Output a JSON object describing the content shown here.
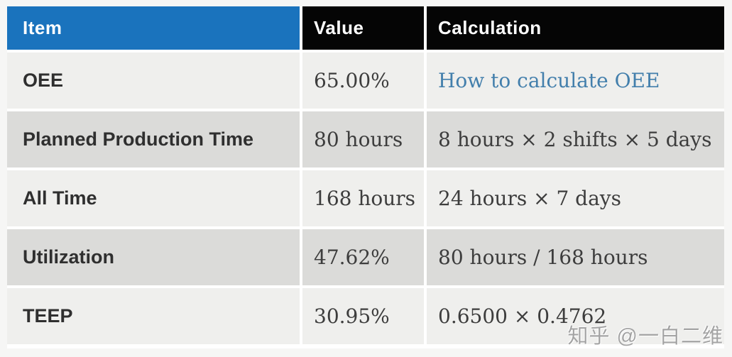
{
  "chart_data": {
    "type": "table",
    "title": "OEE / TEEP calculation table",
    "columns": [
      "Item",
      "Value",
      "Calculation"
    ],
    "rows": [
      [
        "OEE",
        "65.00%",
        "How to calculate OEE"
      ],
      [
        "Planned Production Time",
        "80 hours",
        "8 hours × 2 shifts × 5 days"
      ],
      [
        "All Time",
        "168 hours",
        "24 hours × 7 days"
      ],
      [
        "Utilization",
        "47.62%",
        "80 hours / 168 hours"
      ],
      [
        "TEEP",
        "30.95%",
        "0.6500 × 0.4762"
      ]
    ]
  },
  "table": {
    "header": {
      "item": "Item",
      "value": "Value",
      "calculation": "Calculation"
    },
    "rows": [
      {
        "item": "OEE",
        "value": "65.00%",
        "calculation": "How to calculate OEE"
      },
      {
        "item": "Planned Production Time",
        "value": "80 hours",
        "calculation": "8 hours × 2 shifts × 5 days"
      },
      {
        "item": "All Time",
        "value": "168 hours",
        "calculation": "24 hours × 7 days"
      },
      {
        "item": "Utilization",
        "value": "47.62%",
        "calculation": "80 hours / 168 hours"
      },
      {
        "item": "TEEP",
        "value": "30.95%",
        "calculation": "0.6500 × 0.4762"
      }
    ]
  },
  "watermark": {
    "text": "知乎 @一白二维"
  },
  "colors": {
    "header_item_bg": "#1a73bd",
    "header_dark_bg": "#050505",
    "row_light_bg": "#efefed",
    "row_dark_bg": "#dbdbd9",
    "link": "#437fac",
    "item_text": "#2f2f2f",
    "serif_text": "#3d3d3d"
  }
}
